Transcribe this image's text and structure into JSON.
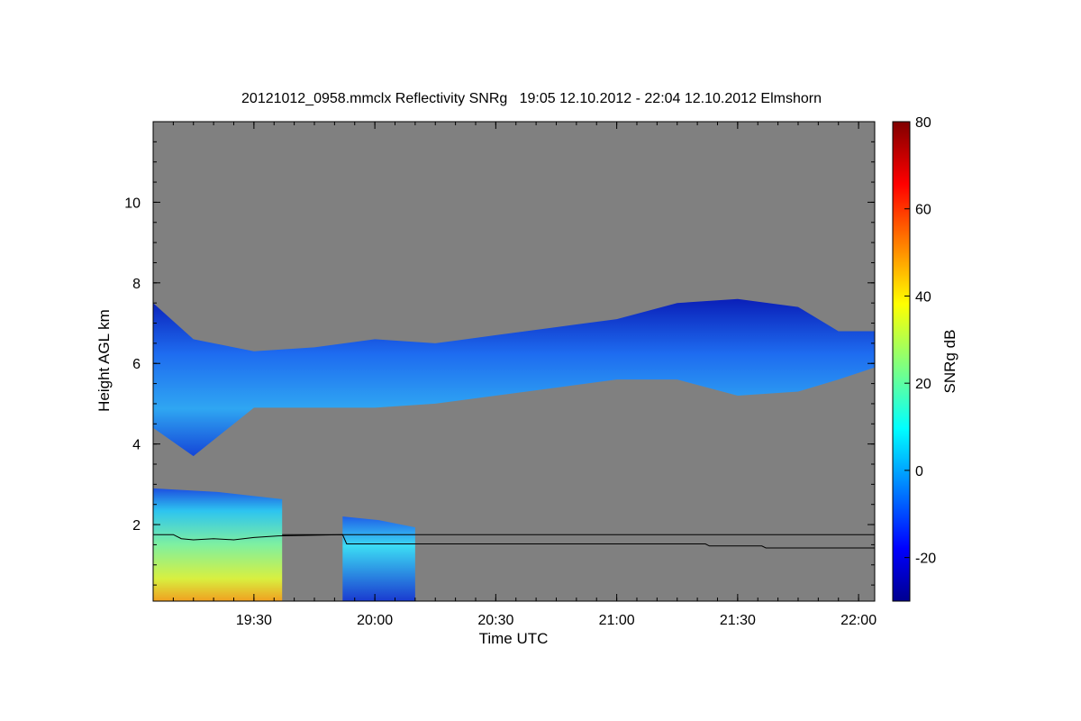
{
  "chart_data": {
    "type": "heatmap",
    "title": "20121012_0958.mmclx Reflectivity SNRg   19:05 12.10.2012 - 22:04 12.10.2012 Elmshorn",
    "xlabel": "Time UTC",
    "ylabel": "Height AGL km",
    "xlim": [
      "19:05",
      "22:04"
    ],
    "ylim": [
      0.1,
      12.0
    ],
    "x_ticks": [
      "19:30",
      "20:00",
      "20:30",
      "21:00",
      "21:30",
      "22:00"
    ],
    "y_ticks": [
      2,
      4,
      6,
      8,
      10
    ],
    "colorbar": {
      "label": "SNRg dB",
      "range": [
        -30,
        80
      ],
      "ticks": [
        -20,
        0,
        20,
        40,
        60,
        80
      ],
      "colormap": "jet"
    },
    "background_color": "#808080",
    "regions": [
      {
        "name": "mid-level cloud layer",
        "time_range": [
          "19:05",
          "22:04"
        ],
        "top_km": [
          7.5,
          6.6,
          6.3,
          6.4,
          6.6,
          6.5,
          6.7,
          6.9,
          7.1,
          7.5,
          7.6,
          7.4,
          6.8,
          6.8
        ],
        "base_km": [
          4.4,
          3.7,
          4.9,
          4.9,
          4.9,
          5.0,
          5.2,
          5.4,
          5.6,
          5.6,
          5.2,
          5.3,
          5.6,
          5.9
        ],
        "time_points": [
          "19:05",
          "19:15",
          "19:30",
          "19:45",
          "20:00",
          "20:15",
          "20:30",
          "20:45",
          "21:00",
          "21:15",
          "21:30",
          "21:45",
          "21:55",
          "22:04"
        ],
        "snr_db": [
          -20,
          10
        ]
      },
      {
        "name": "low-level echo (precipitation)",
        "time_range": [
          "19:05",
          "19:37"
        ],
        "top_km": 2.9,
        "base_km": 0.1,
        "snr_db": [
          -20,
          60
        ]
      },
      {
        "name": "low-level echo",
        "time_range": [
          "19:52",
          "20:10"
        ],
        "top_km": 2.2,
        "base_km": 0.1,
        "snr_db": [
          -20,
          15
        ]
      }
    ],
    "line_series": [
      {
        "time": [
          "19:05",
          "19:10",
          "19:12",
          "19:15",
          "19:20",
          "19:25",
          "19:30",
          "19:36",
          "19:52",
          "19:53",
          "21:22",
          "21:23",
          "21:36",
          "21:37",
          "22:04"
        ],
        "height_km": [
          1.75,
          1.75,
          1.65,
          1.62,
          1.65,
          1.62,
          1.68,
          1.72,
          1.75,
          1.52,
          1.52,
          1.47,
          1.47,
          1.42,
          1.42
        ]
      },
      {
        "time": [
          "19:37",
          "22:04"
        ],
        "height_km": [
          1.75,
          1.75
        ]
      }
    ]
  }
}
